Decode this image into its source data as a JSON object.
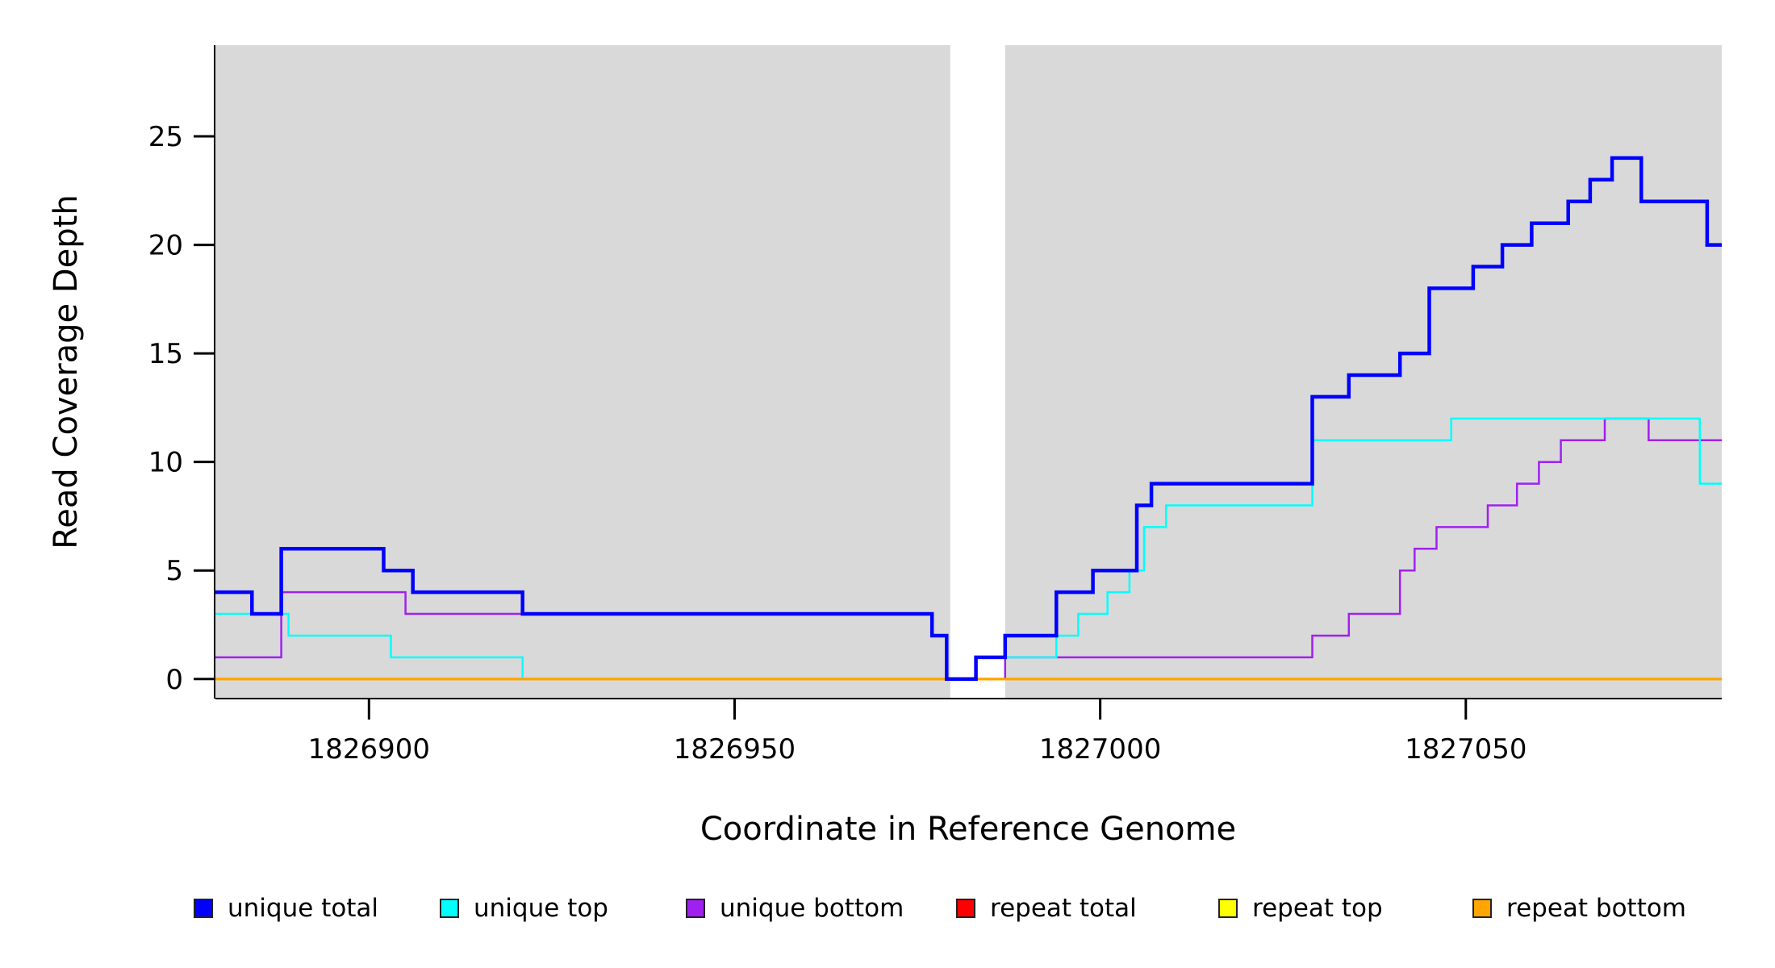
{
  "chart_data": {
    "type": "line",
    "subtype": "step",
    "title": "",
    "xlabel": "Coordinate in Reference Genome",
    "ylabel": "Read Coverage Depth",
    "xlim": [
      1826879,
      1827085
    ],
    "ylim": [
      -0.9,
      29.2
    ],
    "x_ticks": [
      1826900,
      1826950,
      1827000,
      1827050
    ],
    "y_ticks": [
      0,
      5,
      10,
      15,
      20,
      25
    ],
    "grid": false,
    "legend_position": "bottom",
    "plot_background": "#d9d9d9",
    "page_background": "#ffffff",
    "axis_color": "#000000",
    "gap_region": [
      1826979.5,
      1826987
    ],
    "series": [
      {
        "name": "unique total",
        "color": "#0000ff",
        "width": 4.5,
        "points": [
          [
            1826879,
            4
          ],
          [
            1826884,
            3
          ],
          [
            1826888,
            6
          ],
          [
            1826902,
            5
          ],
          [
            1826906,
            4
          ],
          [
            1826921,
            3
          ],
          [
            1826977,
            2
          ],
          [
            1826979,
            0
          ],
          [
            1826983,
            1
          ],
          [
            1826987,
            2
          ],
          [
            1826994,
            4
          ],
          [
            1826999,
            5
          ],
          [
            1827005,
            8
          ],
          [
            1827007,
            9
          ],
          [
            1827029,
            13
          ],
          [
            1827034,
            14
          ],
          [
            1827041,
            15
          ],
          [
            1827045,
            18
          ],
          [
            1827051,
            19
          ],
          [
            1827055,
            20
          ],
          [
            1827059,
            21
          ],
          [
            1827064,
            22
          ],
          [
            1827067,
            23
          ],
          [
            1827070,
            24
          ],
          [
            1827074,
            22
          ],
          [
            1827083,
            20
          ]
        ]
      },
      {
        "name": "unique top",
        "color": "#00ffff",
        "width": 2.5,
        "points": [
          [
            1826879,
            3
          ],
          [
            1826889,
            2
          ],
          [
            1826903,
            1
          ],
          [
            1826921,
            0
          ],
          [
            1826983,
            1
          ],
          [
            1826994,
            2
          ],
          [
            1826997,
            3
          ],
          [
            1827001,
            4
          ],
          [
            1827004,
            5
          ],
          [
            1827006,
            7
          ],
          [
            1827009,
            8
          ],
          [
            1827029,
            11
          ],
          [
            1827048,
            12
          ],
          [
            1827082,
            9
          ]
        ]
      },
      {
        "name": "unique bottom",
        "color": "#a020f0",
        "width": 2.5,
        "points": [
          [
            1826879,
            1
          ],
          [
            1826888,
            4
          ],
          [
            1826905,
            3
          ],
          [
            1826977,
            2
          ],
          [
            1826979,
            0
          ],
          [
            1826987,
            1
          ],
          [
            1827029,
            2
          ],
          [
            1827034,
            3
          ],
          [
            1827041,
            5
          ],
          [
            1827043,
            6
          ],
          [
            1827046,
            7
          ],
          [
            1827053,
            8
          ],
          [
            1827057,
            9
          ],
          [
            1827060,
            10
          ],
          [
            1827063,
            11
          ],
          [
            1827069,
            12
          ],
          [
            1827075,
            11
          ]
        ]
      },
      {
        "name": "repeat total",
        "color": "#ff0000",
        "width": 3,
        "points": [
          [
            1826879,
            0
          ]
        ]
      },
      {
        "name": "repeat top",
        "color": "#ffff00",
        "width": 3,
        "points": [
          [
            1826879,
            0
          ]
        ]
      },
      {
        "name": "repeat bottom",
        "color": "#ffa500",
        "width": 3,
        "points": [
          [
            1826879,
            0
          ]
        ]
      }
    ]
  }
}
